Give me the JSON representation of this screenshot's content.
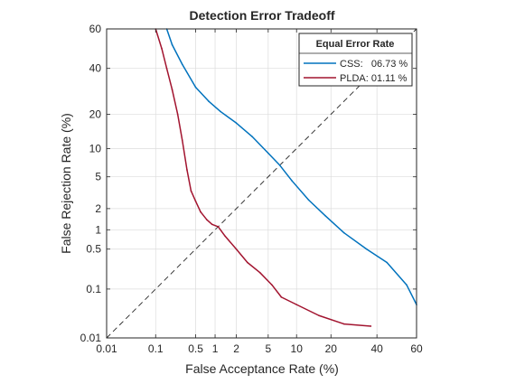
{
  "chart_data": {
    "type": "line",
    "title": "Detection Error Tradeoff",
    "xlabel": "False Acceptance Rate (%)",
    "ylabel": "False Rejection Rate (%)",
    "x_scale": "normal-deviate (probit)",
    "y_scale": "normal-deviate (probit)",
    "xlim": [
      0.01,
      60
    ],
    "ylim": [
      0.01,
      60
    ],
    "x_ticks": [
      0.01,
      0.1,
      0.5,
      1,
      2,
      5,
      10,
      20,
      40,
      60
    ],
    "x_tick_labels": [
      "0.01",
      "0.1",
      "0.5",
      "1",
      "2",
      "5",
      "10",
      "20",
      "40",
      "60"
    ],
    "y_ticks": [
      0.01,
      0.1,
      0.5,
      1,
      2,
      5,
      10,
      20,
      40,
      60
    ],
    "y_tick_labels": [
      "0.01",
      "0.1",
      "0.5",
      "1",
      "2",
      "5",
      "10",
      "20",
      "40",
      "60"
    ],
    "grid": true,
    "legend": {
      "title": "Equal Error Rate",
      "placement": "top-right"
    },
    "reference_line": {
      "style": "dashed",
      "color": "#262626",
      "x": [
        0.01,
        60
      ],
      "y": [
        0.01,
        60
      ]
    },
    "series": [
      {
        "name": "CSS:   06.73 %",
        "color": "#0072BD",
        "x": [
          0.16,
          0.2,
          0.3,
          0.5,
          0.8,
          1.2,
          2,
          3.2,
          5,
          6.73,
          9,
          13,
          18,
          25,
          35,
          45,
          55,
          60
        ],
        "y": [
          60,
          52,
          42,
          31,
          25,
          21,
          17,
          13,
          9,
          6.73,
          4.5,
          2.6,
          1.6,
          0.9,
          0.5,
          0.3,
          0.12,
          0.05
        ]
      },
      {
        "name": "PLDA: 01.11 %",
        "color": "#A2142F",
        "x": [
          0.1,
          0.13,
          0.16,
          0.2,
          0.25,
          0.3,
          0.36,
          0.42,
          0.5,
          0.6,
          0.75,
          0.9,
          1.11,
          1.4,
          2,
          2.8,
          4,
          5.5,
          7,
          10,
          16,
          25,
          37
        ],
        "y": [
          60,
          50,
          40,
          30,
          20,
          12,
          6,
          3.4,
          2.5,
          1.8,
          1.4,
          1.2,
          1.11,
          0.8,
          0.5,
          0.3,
          0.2,
          0.12,
          0.07,
          0.05,
          0.03,
          0.02,
          0.018
        ]
      }
    ]
  }
}
